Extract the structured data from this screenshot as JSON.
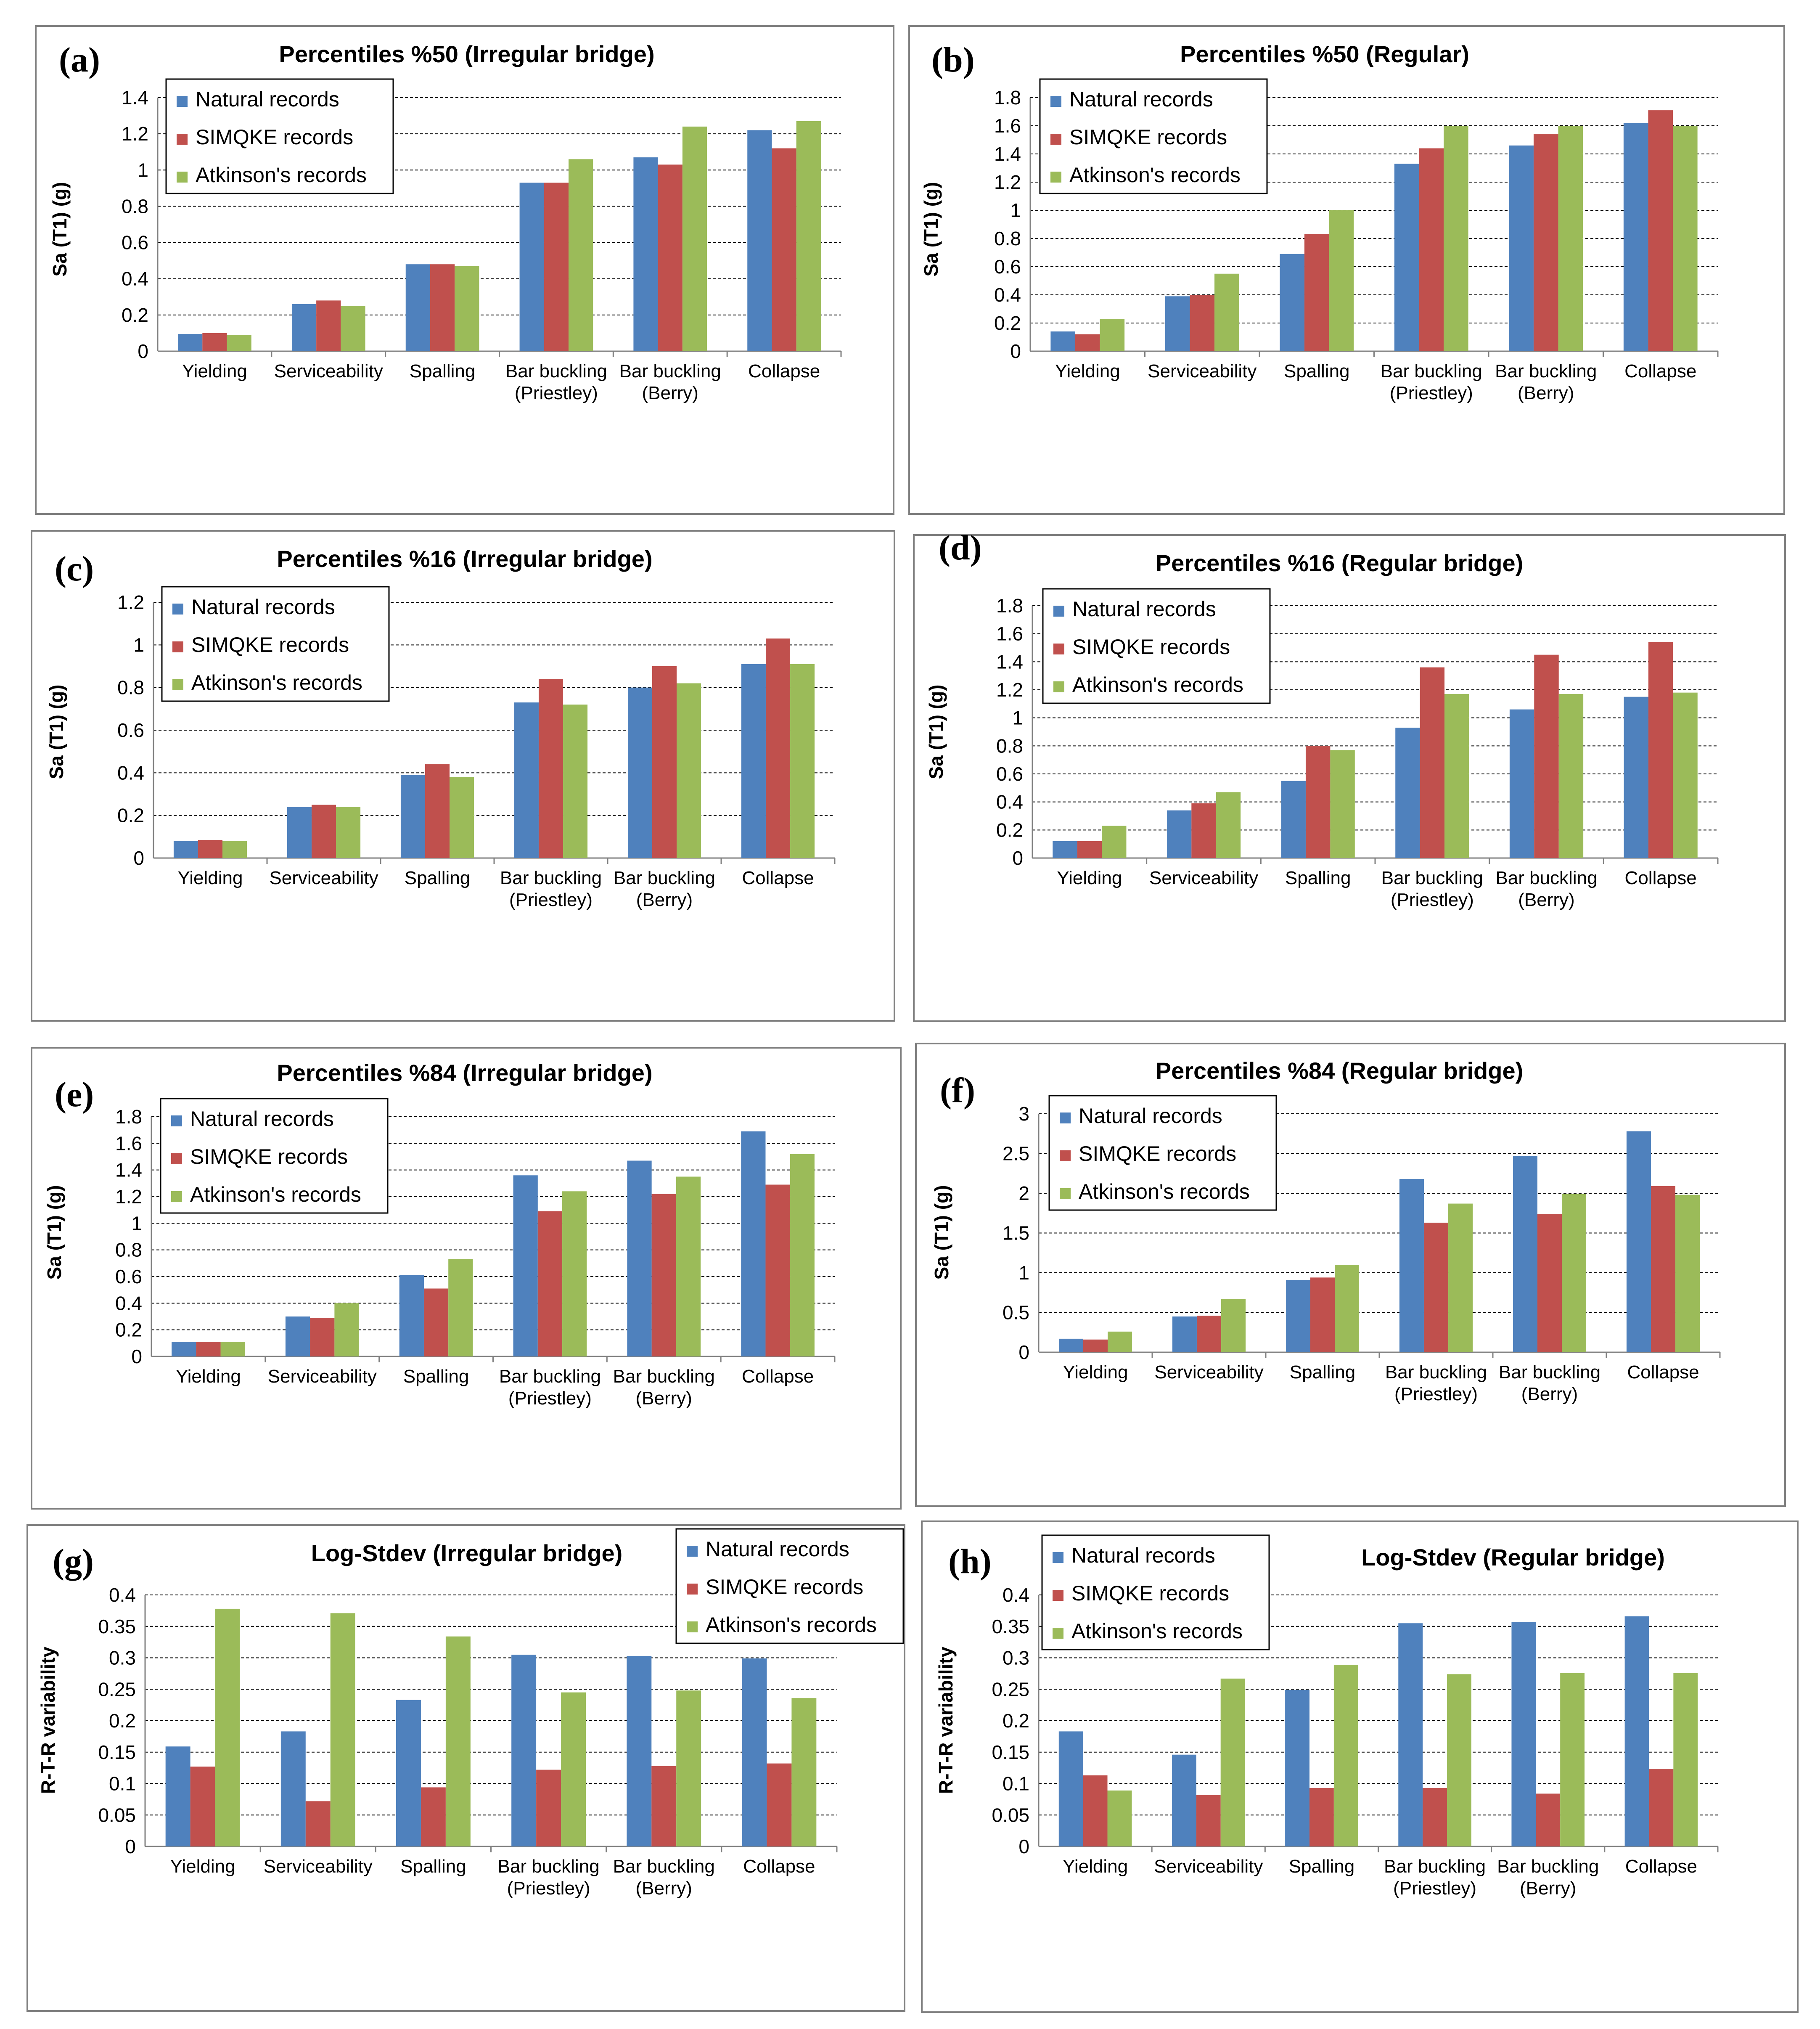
{
  "colors": {
    "natural": "#4F81BD",
    "simqke": "#C0504D",
    "atkinson": "#9BBB59",
    "frame": "#7f7f7f",
    "grid": "#000000"
  },
  "chart_data": [
    {
      "label": "(a)",
      "type": "bar",
      "title": "Percentiles %50 (Irregular  bridge)",
      "ylabel": "Sa (T1) (g)",
      "xlabel": "",
      "ylim": [
        0,
        1.4
      ],
      "yticks": [
        "0",
        "0.2",
        "0.4",
        "0.6",
        "0.8",
        "1",
        "1.2",
        "1.4"
      ],
      "categories": [
        "Yielding",
        "Serviceability",
        "Spalling",
        "Bar buckling\n(Priestley)",
        "Bar buckling\n(Berry)",
        "Collapse"
      ],
      "legend": "top-left",
      "series": [
        {
          "name": "Natural records",
          "values": [
            0.095,
            0.26,
            0.48,
            0.93,
            1.07,
            1.22
          ]
        },
        {
          "name": "SIMQKE records",
          "values": [
            0.1,
            0.28,
            0.48,
            0.93,
            1.03,
            1.12
          ]
        },
        {
          "name": "Atkinson's records",
          "values": [
            0.09,
            0.25,
            0.47,
            1.06,
            1.24,
            1.27
          ]
        }
      ]
    },
    {
      "label": "(b)",
      "type": "bar",
      "title": "Percentiles %50 (Regular)",
      "ylabel": "Sa (T1) (g)",
      "xlabel": "",
      "ylim": [
        0,
        1.8
      ],
      "yticks": [
        "0",
        "0.2",
        "0.4",
        "0.6",
        "0.8",
        "1",
        "1.2",
        "1.4",
        "1.6",
        "1.8"
      ],
      "categories": [
        "Yielding",
        "Serviceability",
        "Spalling",
        "Bar buckling\n(Priestley)",
        "Bar buckling\n(Berry)",
        "Collapse"
      ],
      "legend": "top-left",
      "series": [
        {
          "name": "Natural records",
          "values": [
            0.14,
            0.39,
            0.69,
            1.33,
            1.46,
            1.62
          ]
        },
        {
          "name": "SIMQKE records",
          "values": [
            0.12,
            0.4,
            0.83,
            1.44,
            1.54,
            1.71
          ]
        },
        {
          "name": "Atkinson's records",
          "values": [
            0.23,
            0.55,
            1.0,
            1.6,
            1.6,
            1.6
          ]
        }
      ]
    },
    {
      "label": "(c)",
      "type": "bar",
      "title": "Percentiles %16 (Irregular  bridge)",
      "ylabel": "Sa (T1) (g)",
      "xlabel": "",
      "ylim": [
        0,
        1.2
      ],
      "yticks": [
        "0",
        "0.2",
        "0.4",
        "0.6",
        "0.8",
        "1",
        "1.2"
      ],
      "categories": [
        "Yielding",
        "Serviceability",
        "Spalling",
        "Bar buckling\n(Priestley)",
        "Bar buckling\n(Berry)",
        "Collapse"
      ],
      "legend": "top-left",
      "series": [
        {
          "name": "Natural records",
          "values": [
            0.08,
            0.24,
            0.39,
            0.73,
            0.8,
            0.91
          ]
        },
        {
          "name": "SIMQKE records",
          "values": [
            0.085,
            0.25,
            0.44,
            0.84,
            0.9,
            1.03
          ]
        },
        {
          "name": "Atkinson's records",
          "values": [
            0.08,
            0.24,
            0.38,
            0.72,
            0.82,
            0.91
          ]
        }
      ]
    },
    {
      "label": "(d)",
      "type": "bar",
      "title": "Percentiles %16 (Regular bridge)",
      "ylabel": "Sa (T1) (g)",
      "xlabel": "",
      "ylim": [
        0,
        1.8
      ],
      "yticks": [
        "0",
        "0.2",
        "0.4",
        "0.6",
        "0.8",
        "1",
        "1.2",
        "1.4",
        "1.6",
        "1.8"
      ],
      "categories": [
        "Yielding",
        "Serviceability",
        "Spalling",
        "Bar buckling\n(Priestley)",
        "Bar buckling\n(Berry)",
        "Collapse"
      ],
      "legend": "top-left",
      "series": [
        {
          "name": "Natural records",
          "values": [
            0.12,
            0.34,
            0.55,
            0.93,
            1.06,
            1.15
          ]
        },
        {
          "name": "SIMQKE records",
          "values": [
            0.12,
            0.39,
            0.8,
            1.36,
            1.45,
            1.54
          ]
        },
        {
          "name": "Atkinson's records",
          "values": [
            0.23,
            0.47,
            0.77,
            1.17,
            1.17,
            1.18
          ]
        }
      ]
    },
    {
      "label": "(e)",
      "type": "bar",
      "title": "Percentiles %84 (Irregular  bridge)",
      "ylabel": "Sa (T1) (g)",
      "xlabel": "",
      "ylim": [
        0,
        1.8
      ],
      "yticks": [
        "0",
        "0.2",
        "0.4",
        "0.6",
        "0.8",
        "1",
        "1.2",
        "1.4",
        "1.6",
        "1.8"
      ],
      "categories": [
        "Yielding",
        "Serviceability",
        "Spalling",
        "Bar buckling\n(Priestley)",
        "Bar buckling\n(Berry)",
        "Collapse"
      ],
      "legend": "top-left",
      "series": [
        {
          "name": "Natural records",
          "values": [
            0.11,
            0.3,
            0.61,
            1.36,
            1.47,
            1.69
          ]
        },
        {
          "name": "SIMQKE records",
          "values": [
            0.11,
            0.29,
            0.51,
            1.09,
            1.22,
            1.29
          ]
        },
        {
          "name": "Atkinson's records",
          "values": [
            0.11,
            0.4,
            0.73,
            1.24,
            1.35,
            1.52
          ]
        }
      ]
    },
    {
      "label": "(f)",
      "type": "bar",
      "title": "Percentiles %84 (Regular bridge)",
      "ylabel": "Sa (T1) (g)",
      "xlabel": "",
      "ylim": [
        0,
        3
      ],
      "yticks": [
        "0",
        "0.5",
        "1",
        "1.5",
        "2",
        "2.5",
        "3"
      ],
      "categories": [
        "Yielding",
        "Serviceability",
        "Spalling",
        "Bar buckling\n(Priestley)",
        "Bar buckling\n(Berry)",
        "Collapse"
      ],
      "legend": "top-left",
      "series": [
        {
          "name": "Natural records",
          "values": [
            0.17,
            0.45,
            0.91,
            2.18,
            2.47,
            2.78
          ]
        },
        {
          "name": "SIMQKE records",
          "values": [
            0.16,
            0.46,
            0.94,
            1.63,
            1.74,
            2.09
          ]
        },
        {
          "name": "Atkinson's records",
          "values": [
            0.26,
            0.67,
            1.1,
            1.87,
            1.99,
            1.98
          ]
        }
      ]
    },
    {
      "label": "(g)",
      "type": "bar",
      "title": "Log-Stdev (Irregular  bridge)",
      "ylabel": "R-T-R variability",
      "xlabel": "",
      "ylim": [
        0,
        0.4
      ],
      "yticks": [
        "0",
        "0.05",
        "0.1",
        "0.15",
        "0.2",
        "0.25",
        "0.3",
        "0.35",
        "0.4"
      ],
      "categories": [
        "Yielding",
        "Serviceability",
        "Spalling",
        "Bar buckling\n(Priestley)",
        "Bar buckling\n(Berry)",
        "Collapse"
      ],
      "legend": "top-right",
      "series": [
        {
          "name": "Natural records",
          "values": [
            0.159,
            0.183,
            0.233,
            0.305,
            0.303,
            0.299
          ]
        },
        {
          "name": "SIMQKE records",
          "values": [
            0.127,
            0.072,
            0.094,
            0.122,
            0.128,
            0.132
          ]
        },
        {
          "name": "Atkinson's records",
          "values": [
            0.378,
            0.371,
            0.334,
            0.245,
            0.248,
            0.236
          ]
        }
      ]
    },
    {
      "label": "(h)",
      "type": "bar",
      "title": "Log-Stdev (Regular  bridge)",
      "ylabel": "R-T-R variability",
      "xlabel": "",
      "ylim": [
        0,
        0.4
      ],
      "yticks": [
        "0",
        "0.05",
        "0.1",
        "0.15",
        "0.2",
        "0.25",
        "0.3",
        "0.35",
        "0.4"
      ],
      "categories": [
        "Yielding",
        "Serviceability",
        "Spalling",
        "Bar buckling\n(Priestley)",
        "Bar buckling\n(Berry)",
        "Collapse"
      ],
      "legend": "top-left",
      "series": [
        {
          "name": "Natural records",
          "values": [
            0.183,
            0.146,
            0.249,
            0.355,
            0.357,
            0.366
          ]
        },
        {
          "name": "SIMQKE records",
          "values": [
            0.113,
            0.082,
            0.093,
            0.093,
            0.084,
            0.123
          ]
        },
        {
          "name": "Atkinson's records",
          "values": [
            0.089,
            0.267,
            0.289,
            0.274,
            0.276,
            0.276
          ]
        }
      ]
    }
  ]
}
